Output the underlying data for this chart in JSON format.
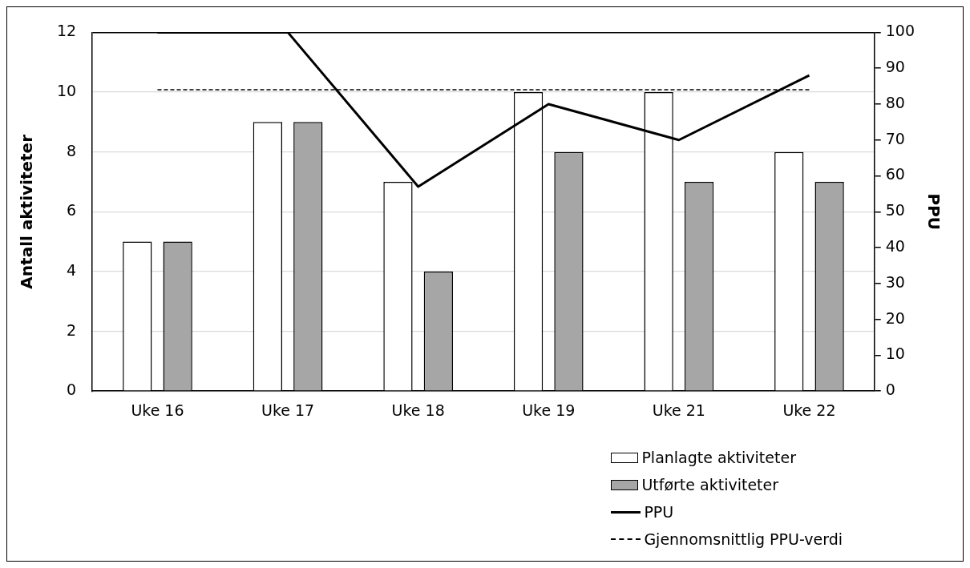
{
  "chart_data": {
    "type": "bar",
    "ylabel": "Antall aktiviteter",
    "y2label": "PPU",
    "categories": [
      "Uke 16",
      "Uke 17",
      "Uke 18",
      "Uke 19",
      "Uke 21",
      "Uke 22"
    ],
    "series": [
      {
        "name": "Planlagte aktiviteter",
        "color": "#ffffff",
        "values": [
          5,
          9,
          7,
          10,
          10,
          8
        ]
      },
      {
        "name": "Utførte aktiviteter",
        "color": "#a6a6a6",
        "values": [
          5,
          9,
          4,
          8,
          7,
          7
        ]
      },
      {
        "name": "PPU",
        "type": "line",
        "axis": "y2",
        "color": "#000000",
        "line_style": "solid",
        "values": [
          100,
          100,
          57,
          80,
          70,
          88
        ]
      },
      {
        "name": "Gjennomsnittlig PPU-verdi",
        "type": "line",
        "axis": "y2",
        "color": "#000000",
        "line_style": "dashed",
        "values": [
          84,
          84,
          84,
          84,
          84,
          84
        ]
      }
    ],
    "ylim": [
      0,
      12
    ],
    "yticks": [
      0,
      2,
      4,
      6,
      8,
      10,
      12
    ],
    "y2lim": [
      0,
      100
    ],
    "y2ticks": [
      0,
      10,
      20,
      30,
      40,
      50,
      60,
      70,
      80,
      90,
      100
    ],
    "grid": "y",
    "legend": "bottom right",
    "marker": "none"
  }
}
